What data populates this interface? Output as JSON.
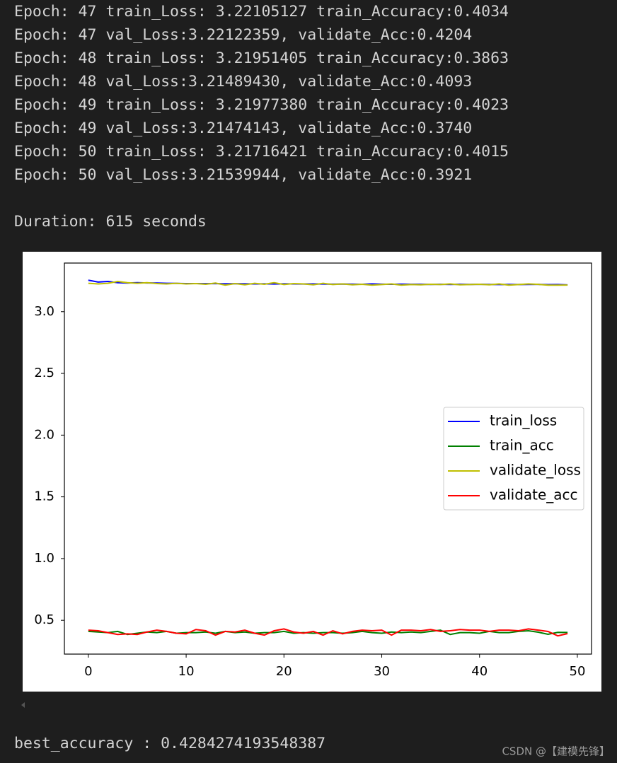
{
  "log_lines": [
    "Epoch: 47 train_Loss: 3.22105127 train_Accuracy:0.4034",
    "Epoch: 47 val_Loss:3.22122359,  validate_Acc:0.4204",
    "Epoch: 48 train_Loss: 3.21951405 train_Accuracy:0.3863",
    "Epoch: 48 val_Loss:3.21489430,  validate_Acc:0.4093",
    "Epoch: 49 train_Loss: 3.21977380 train_Accuracy:0.4023",
    "Epoch: 49 val_Loss:3.21474143,  validate_Acc:0.3740",
    "Epoch: 50 train_Loss: 3.21716421 train_Accuracy:0.4015",
    "Epoch: 50 val_Loss:3.21539944,  validate_Acc:0.3921"
  ],
  "duration": "Duration: 615 seconds",
  "chart_data": {
    "type": "line",
    "x": [
      0,
      1,
      2,
      3,
      4,
      5,
      6,
      7,
      8,
      9,
      10,
      11,
      12,
      13,
      14,
      15,
      16,
      17,
      18,
      19,
      20,
      21,
      22,
      23,
      24,
      25,
      26,
      27,
      28,
      29,
      30,
      31,
      32,
      33,
      34,
      35,
      36,
      37,
      38,
      39,
      40,
      41,
      42,
      43,
      44,
      45,
      46,
      47,
      48,
      49
    ],
    "series": [
      {
        "name": "train_loss",
        "color": "#0000ff",
        "values": [
          3.255,
          3.24,
          3.245,
          3.235,
          3.232,
          3.235,
          3.233,
          3.232,
          3.23,
          3.229,
          3.228,
          3.228,
          3.227,
          3.228,
          3.226,
          3.227,
          3.226,
          3.225,
          3.226,
          3.224,
          3.226,
          3.225,
          3.224,
          3.225,
          3.224,
          3.223,
          3.224,
          3.223,
          3.222,
          3.225,
          3.223,
          3.222,
          3.223,
          3.222,
          3.222,
          3.221,
          3.222,
          3.221,
          3.222,
          3.221,
          3.222,
          3.221,
          3.22,
          3.221,
          3.22,
          3.221,
          3.2211,
          3.2195,
          3.2198,
          3.2172
        ]
      },
      {
        "name": "train_acc",
        "color": "#008000",
        "values": [
          0.41,
          0.405,
          0.4,
          0.41,
          0.385,
          0.395,
          0.405,
          0.4,
          0.41,
          0.395,
          0.4,
          0.4,
          0.405,
          0.395,
          0.41,
          0.4,
          0.405,
          0.395,
          0.4,
          0.4,
          0.41,
          0.395,
          0.4,
          0.395,
          0.4,
          0.4,
          0.395,
          0.4,
          0.41,
          0.4,
          0.395,
          0.405,
          0.4,
          0.405,
          0.4,
          0.41,
          0.42,
          0.385,
          0.4,
          0.4,
          0.395,
          0.41,
          0.4,
          0.4,
          0.41,
          0.415,
          0.4034,
          0.3863,
          0.4023,
          0.4015
        ]
      },
      {
        "name": "validate_loss",
        "color": "#bfbf00",
        "values": [
          3.23,
          3.225,
          3.23,
          3.245,
          3.235,
          3.23,
          3.235,
          3.228,
          3.225,
          3.23,
          3.225,
          3.228,
          3.222,
          3.232,
          3.215,
          3.228,
          3.218,
          3.23,
          3.222,
          3.235,
          3.22,
          3.228,
          3.225,
          3.218,
          3.23,
          3.22,
          3.225,
          3.218,
          3.222,
          3.215,
          3.22,
          3.225,
          3.215,
          3.22,
          3.218,
          3.222,
          3.22,
          3.225,
          3.218,
          3.22,
          3.222,
          3.218,
          3.225,
          3.215,
          3.22,
          3.225,
          3.2212,
          3.2149,
          3.2147,
          3.2154
        ]
      },
      {
        "name": "validate_acc",
        "color": "#ff0000",
        "values": [
          0.42,
          0.415,
          0.4,
          0.385,
          0.39,
          0.385,
          0.405,
          0.42,
          0.41,
          0.395,
          0.39,
          0.425,
          0.415,
          0.38,
          0.41,
          0.405,
          0.42,
          0.395,
          0.38,
          0.415,
          0.43,
          0.405,
          0.395,
          0.41,
          0.38,
          0.415,
          0.39,
          0.41,
          0.42,
          0.415,
          0.42,
          0.38,
          0.42,
          0.42,
          0.415,
          0.425,
          0.41,
          0.415,
          0.425,
          0.42,
          0.42,
          0.41,
          0.42,
          0.42,
          0.415,
          0.43,
          0.4204,
          0.4093,
          0.374,
          0.3921
        ]
      }
    ],
    "xlim": [
      -2.45,
      51.45
    ],
    "ylim": [
      0.226,
      3.394
    ],
    "xticks": [
      0,
      10,
      20,
      30,
      40,
      50
    ],
    "yticks": [
      0.5,
      {
        "value": 1.0,
        "label": "1.0"
      },
      1.5,
      {
        "value": 2.0,
        "label": "2.0"
      },
      2.5,
      {
        "value": 3.0,
        "label": "3.0"
      }
    ],
    "legend": "center right"
  },
  "best_accuracy": "best_accuracy : 0.4284274193548387",
  "watermark": "CSDN @【建模先锋】"
}
